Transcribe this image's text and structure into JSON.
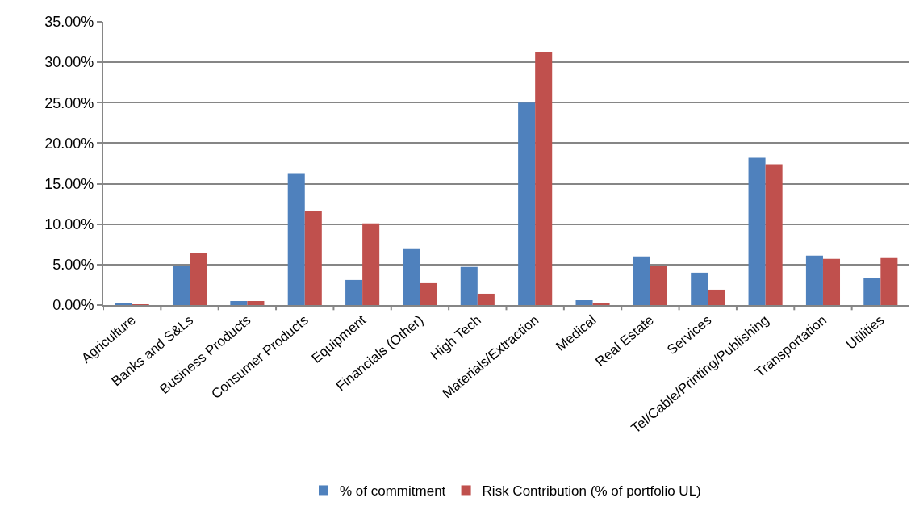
{
  "chart_data": {
    "type": "bar",
    "categories": [
      "Agriculture",
      "Banks and S&Ls",
      "Business Products",
      "Consumer Products",
      "Equipment",
      "Financials (Other)",
      "High Tech",
      "Materials/Extraction",
      "Medical",
      "Real Estate",
      "Services",
      "Tel/Cable/Printing/Publishing",
      "Transportation",
      "Utilities"
    ],
    "series": [
      {
        "name": "% of commitment",
        "color": "#4f81bd",
        "values": [
          0.3,
          4.8,
          0.5,
          16.3,
          3.1,
          7.0,
          4.7,
          25.0,
          0.6,
          6.0,
          4.0,
          18.2,
          6.1,
          3.3
        ]
      },
      {
        "name": "Risk Contribution (% of portfolio UL)",
        "color": "#c0504d",
        "values": [
          0.1,
          6.4,
          0.5,
          11.6,
          10.1,
          2.7,
          1.4,
          31.2,
          0.2,
          4.8,
          1.9,
          17.4,
          5.7,
          5.8
        ]
      }
    ],
    "ylim": [
      0,
      35
    ],
    "yticks": [
      {
        "value": 0,
        "label": "0.00%"
      },
      {
        "value": 5,
        "label": "5.00%"
      },
      {
        "value": 10,
        "label": "10.00%"
      },
      {
        "value": 15,
        "label": "15.00%"
      },
      {
        "value": 20,
        "label": "20.00%"
      },
      {
        "value": 25,
        "label": "25.00%"
      },
      {
        "value": 30,
        "label": "30.00%"
      },
      {
        "value": 35,
        "label": "35.00%"
      }
    ],
    "grid": "y",
    "legend": "bottom"
  }
}
